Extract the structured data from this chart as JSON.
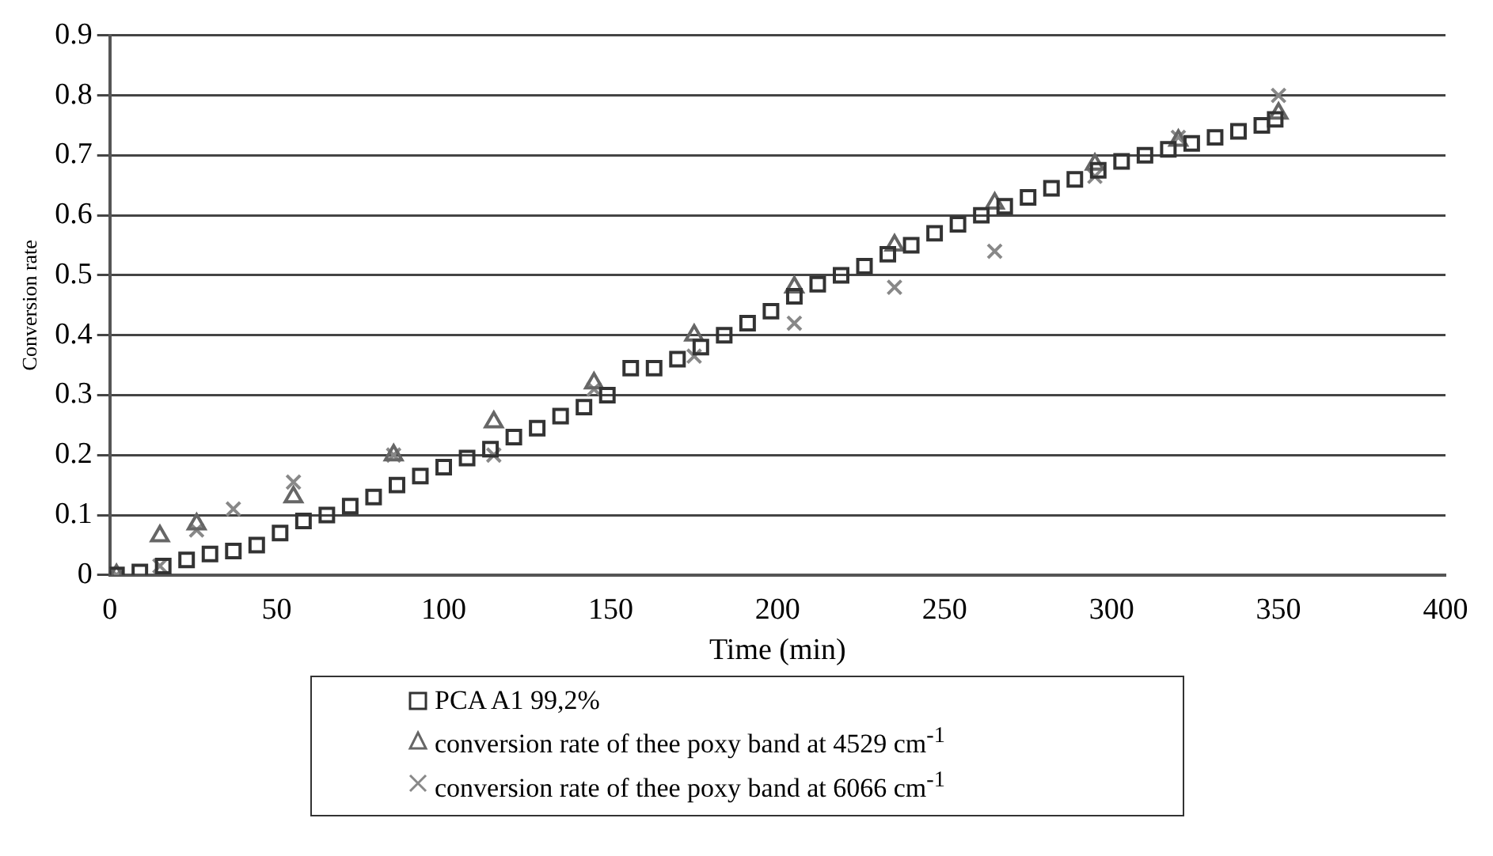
{
  "chart_data": {
    "type": "scatter",
    "xlabel": "Time (min)",
    "ylabel": "Conversion rate",
    "xlim": [
      0,
      400
    ],
    "xticks": [
      0,
      50,
      100,
      150,
      200,
      250,
      300,
      350,
      400
    ],
    "ylim": [
      0,
      0.9
    ],
    "yticks": [
      0,
      0.1,
      0.2,
      0.3,
      0.4,
      0.5,
      0.6,
      0.7,
      0.8,
      0.9
    ],
    "grid": "y",
    "legend": "bottom",
    "series": [
      {
        "name": "PCA A1 99,2%",
        "marker": "square",
        "color": "#333333",
        "x": [
          2,
          9,
          16,
          23,
          30,
          37,
          44,
          51,
          58,
          65,
          72,
          79,
          86,
          93,
          100,
          107,
          114,
          121,
          128,
          135,
          142,
          149,
          156,
          163,
          170,
          177,
          184,
          191,
          198,
          205,
          212,
          219,
          226,
          233,
          240,
          247,
          254,
          261,
          268,
          275,
          282,
          289,
          296,
          303,
          310,
          317,
          324,
          331,
          338,
          345,
          349
        ],
        "values": [
          0,
          0.005,
          0.015,
          0.025,
          0.035,
          0.04,
          0.05,
          0.07,
          0.09,
          0.1,
          0.115,
          0.13,
          0.15,
          0.165,
          0.18,
          0.195,
          0.21,
          0.23,
          0.245,
          0.265,
          0.28,
          0.3,
          0.345,
          0.345,
          0.36,
          0.38,
          0.4,
          0.42,
          0.44,
          0.465,
          0.485,
          0.5,
          0.515,
          0.535,
          0.55,
          0.57,
          0.585,
          0.6,
          0.615,
          0.63,
          0.645,
          0.66,
          0.675,
          0.69,
          0.7,
          0.71,
          0.72,
          0.73,
          0.74,
          0.75,
          0.76
        ]
      },
      {
        "name": "conversion rate of thee poxy band at 4529 cm$^{-1}$",
        "marker": "triangle",
        "color": "#666666",
        "x": [
          2,
          15,
          26,
          55,
          85,
          115,
          145,
          175,
          205,
          235,
          265,
          295,
          320,
          350
        ],
        "values": [
          0,
          0.065,
          0.085,
          0.13,
          0.2,
          0.255,
          0.32,
          0.4,
          0.48,
          0.55,
          0.62,
          0.685,
          0.725,
          0.77
        ]
      },
      {
        "name": "conversion rate of thee poxy band at 6066 cm$^{-1}$",
        "marker": "cross",
        "color": "#888888",
        "x": [
          2,
          15,
          26,
          37,
          55,
          85,
          115,
          145,
          175,
          205,
          235,
          265,
          295,
          320,
          350
        ],
        "values": [
          0,
          0.015,
          0.075,
          0.11,
          0.155,
          0.2,
          0.2,
          0.31,
          0.365,
          0.42,
          0.48,
          0.54,
          0.665,
          0.73,
          0.8
        ]
      }
    ]
  }
}
